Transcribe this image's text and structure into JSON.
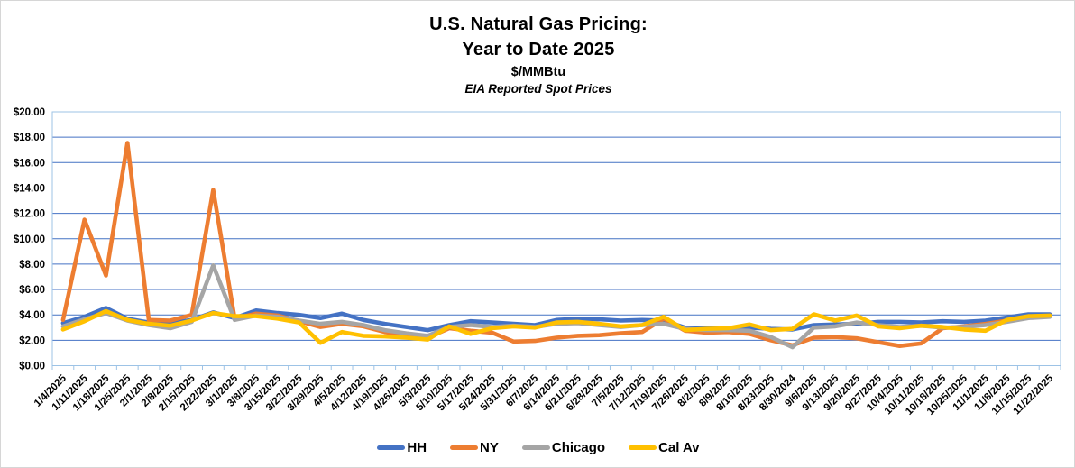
{
  "chart_data": {
    "type": "line",
    "title_line1": "U.S. Natural Gas Pricing:",
    "title_line2": "Year to Date 2025",
    "units_label": "$/MMBtu",
    "subtitle": "EIA Reported Spot Prices",
    "grid": "horizontal",
    "legend_position": "bottom",
    "ylim": [
      0,
      20
    ],
    "ytick_step": 2,
    "ytick_labels": [
      "$0.00",
      "$2.00",
      "$4.00",
      "$6.00",
      "$8.00",
      "$10.00",
      "$12.00",
      "$14.00",
      "$16.00",
      "$18.00",
      "$20.00"
    ],
    "categories": [
      "1/4/2025",
      "1/11/2025",
      "1/18/2025",
      "1/25/2025",
      "2/1/2025",
      "2/8/2025",
      "2/15/2025",
      "2/22/2025",
      "3/1/2025",
      "3/8/2025",
      "3/15/2025",
      "3/22/2025",
      "3/29/2025",
      "4/5/2025",
      "4/12/2025",
      "4/19/2025",
      "4/26/2025",
      "5/3/2025",
      "5/10/2025",
      "5/17/2025",
      "5/24/2025",
      "5/31/2025",
      "6/7/2025",
      "6/14/2025",
      "6/21/2025",
      "6/28/2025",
      "7/5/2025",
      "7/12/2025",
      "7/19/2025",
      "7/26/2025",
      "8/2/2025",
      "8/9/2025",
      "8/16/2025",
      "8/23/2025",
      "8/30/2024",
      "9/6/2025",
      "9/13/2025",
      "9/20/2025",
      "9/27/2025",
      "10/4/2025",
      "10/11/2025",
      "10/18/2025",
      "10/25/2025",
      "11/1/2025",
      "11/8/2025",
      "11/15/2025",
      "11/22/2025"
    ],
    "series": [
      {
        "name": "HH",
        "color": "#4472C4",
        "values": [
          3.35,
          3.85,
          4.55,
          3.7,
          3.4,
          3.35,
          3.6,
          4.2,
          3.75,
          4.35,
          4.15,
          4.0,
          3.75,
          4.1,
          3.6,
          3.3,
          3.05,
          2.8,
          3.2,
          3.5,
          3.4,
          3.3,
          3.2,
          3.6,
          3.7,
          3.65,
          3.55,
          3.6,
          3.55,
          3.0,
          2.95,
          3.0,
          3.0,
          2.9,
          2.85,
          3.2,
          3.25,
          3.3,
          3.45,
          3.45,
          3.4,
          3.5,
          3.45,
          3.55,
          3.8,
          4.05,
          4.05
        ]
      },
      {
        "name": "NY",
        "color": "#ED7D31",
        "values": [
          3.6,
          11.5,
          7.1,
          17.55,
          3.6,
          3.55,
          4.0,
          13.85,
          3.7,
          4.1,
          3.95,
          3.5,
          3.05,
          3.3,
          3.1,
          2.65,
          2.35,
          2.2,
          2.95,
          2.75,
          2.6,
          1.9,
          1.95,
          2.2,
          2.35,
          2.4,
          2.55,
          2.65,
          3.7,
          2.75,
          2.6,
          2.65,
          2.5,
          2.0,
          1.6,
          2.2,
          2.25,
          2.15,
          1.85,
          1.55,
          1.75,
          2.95,
          3.1,
          3.3,
          3.55,
          3.8,
          3.9
        ]
      },
      {
        "name": "Chicago",
        "color": "#A5A5A5",
        "values": [
          3.1,
          3.65,
          4.15,
          3.55,
          3.2,
          2.95,
          3.45,
          7.9,
          3.6,
          3.95,
          3.85,
          3.55,
          3.3,
          3.45,
          3.2,
          2.8,
          2.55,
          2.35,
          3.05,
          3.2,
          3.05,
          3.15,
          3.05,
          3.3,
          3.35,
          3.2,
          3.05,
          3.2,
          3.3,
          2.9,
          2.8,
          2.8,
          2.75,
          2.25,
          1.45,
          3.0,
          3.1,
          3.4,
          3.2,
          3.05,
          3.15,
          3.0,
          3.05,
          3.2,
          3.45,
          3.75,
          3.85
        ]
      },
      {
        "name": "Cal Av",
        "color": "#FFC000",
        "values": [
          2.85,
          3.5,
          4.3,
          3.6,
          3.3,
          3.15,
          3.55,
          4.15,
          3.9,
          3.9,
          3.7,
          3.4,
          1.8,
          2.65,
          2.35,
          2.3,
          2.2,
          2.05,
          3.1,
          2.5,
          2.95,
          3.1,
          3.0,
          3.4,
          3.45,
          3.3,
          3.1,
          3.2,
          3.85,
          2.8,
          2.9,
          2.95,
          3.25,
          2.8,
          2.9,
          4.05,
          3.55,
          3.95,
          3.1,
          2.95,
          3.15,
          3.05,
          2.85,
          2.75,
          3.6,
          3.9,
          3.95
        ]
      }
    ],
    "style_colors": {
      "gridline": "#4472C4",
      "axis_line": "#9DC3E6",
      "tick_mark": "#9DC3E6",
      "label_text": "#000000"
    }
  }
}
